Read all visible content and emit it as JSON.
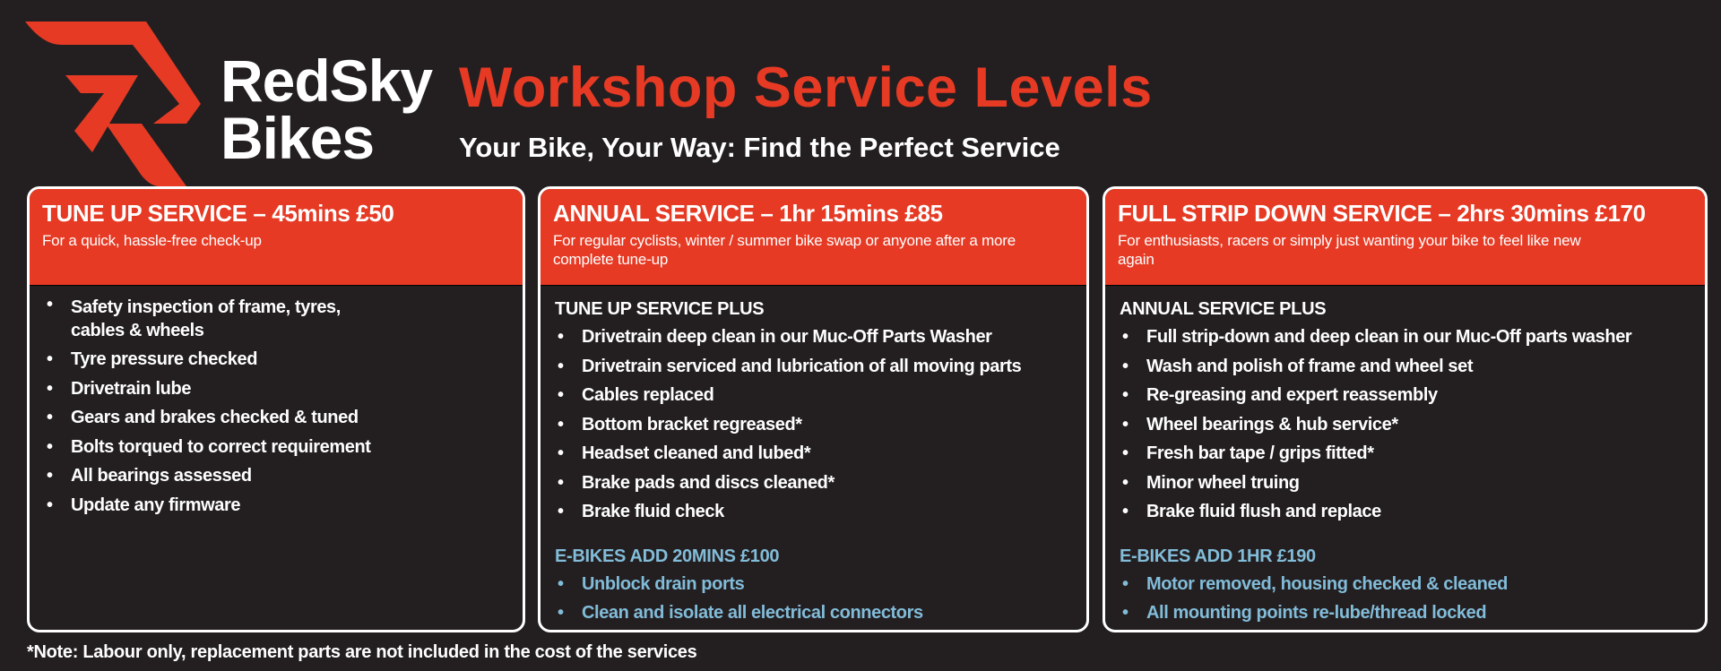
{
  "brand": {
    "line1": "RedSky",
    "line2": "Bikes",
    "red": "#e63a24"
  },
  "header": {
    "title": "Workshop Service Levels",
    "subtitle": "Your Bike, Your Way: Find the Perfect Service"
  },
  "cards": [
    {
      "title": "TUNE UP SERVICE – 45mins £50",
      "description": "For a quick, hassle-free check-up",
      "items": [
        "Safety inspection of frame, tyres, cables & wheels",
        "Tyre pressure checked",
        "Drivetrain lube",
        "Gears and brakes checked & tuned",
        "Bolts torqued to correct requirement",
        "All bearings assessed",
        "Update any firmware"
      ]
    },
    {
      "title": "ANNUAL SERVICE – 1hr 15mins £85",
      "description": "For regular cyclists, winter / summer bike swap or anyone after a more complete tune-up",
      "plus": "TUNE UP SERVICE PLUS",
      "items": [
        "Drivetrain deep clean in our Muc-Off Parts Washer",
        "Drivetrain serviced and lubrication of all moving parts",
        "Cables replaced",
        "Bottom bracket regreased*",
        "Headset cleaned and lubed*",
        "Brake pads and discs cleaned*",
        "Brake fluid check"
      ],
      "ebike": {
        "title": "E-BIKES ADD 20MINS £100",
        "items": [
          "Unblock drain ports",
          "Clean and isolate all electrical connectors"
        ]
      }
    },
    {
      "title": "FULL STRIP DOWN SERVICE – 2hrs 30mins £170",
      "description": "For enthusiasts, racers or simply just wanting your bike to feel like new again",
      "plus": "ANNUAL SERVICE PLUS",
      "items": [
        "Full strip-down and deep clean in our Muc-Off parts washer",
        "Wash and polish of frame and wheel set",
        "Re-greasing and expert reassembly",
        "Wheel bearings & hub service*",
        "Fresh bar tape / grips fitted*",
        "Minor wheel truing",
        "Brake fluid flush and replace"
      ],
      "ebike": {
        "title": "E-BIKES ADD 1HR £190",
        "items": [
          "Motor removed, housing checked & cleaned",
          "All mounting points re-lube/thread locked"
        ]
      }
    }
  ],
  "note": "*Note: Labour only, replacement parts are not included in the cost of the services",
  "colors": {
    "background": "#231f20",
    "accent": "#e63a24",
    "ebike": "#82bcd9"
  }
}
